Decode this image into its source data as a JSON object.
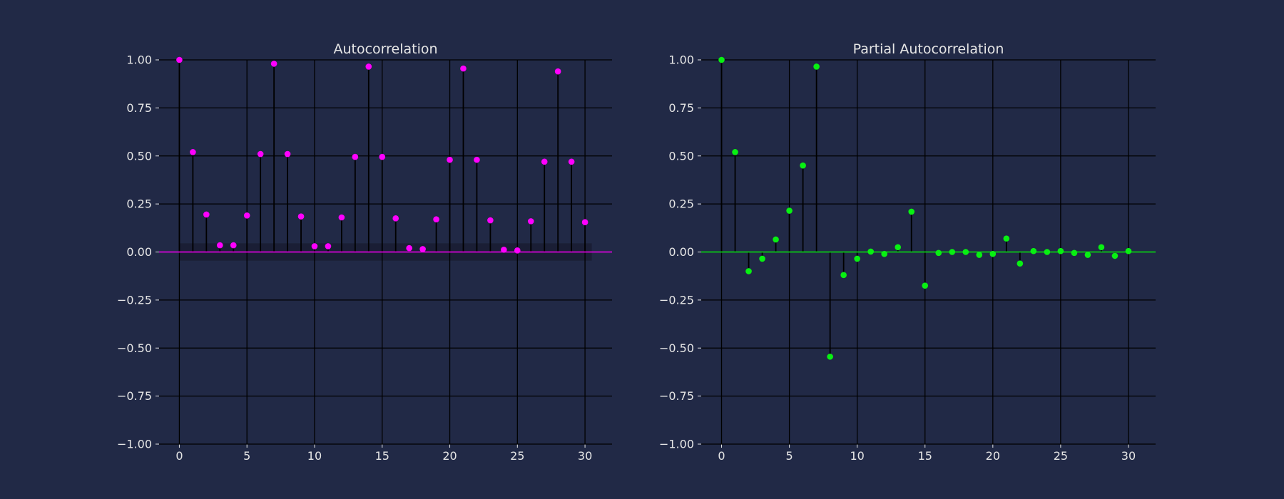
{
  "chart_data": [
    {
      "type": "stem",
      "title": "Autocorrelation",
      "xlabel": "",
      "ylabel": "",
      "xlim": [
        -1.5,
        32
      ],
      "ylim": [
        -1.0,
        1.0
      ],
      "grid": true,
      "color": "#ff00ff",
      "baseline_color": "#ff00ff",
      "confidence_band": {
        "lower": -0.045,
        "upper": 0.045,
        "color": "#1a1d33"
      },
      "x_ticks": [
        0,
        5,
        10,
        15,
        20,
        25,
        30
      ],
      "y_ticks": [
        1.0,
        0.75,
        0.5,
        0.25,
        0.0,
        -0.25,
        -0.5,
        -0.75,
        -1.0
      ],
      "x_tick_labels": [
        "0",
        "5",
        "10",
        "15",
        "20",
        "25",
        "30"
      ],
      "y_tick_labels": [
        "1.00",
        "0.75",
        "0.50",
        "0.25",
        "0.00",
        "−0.25",
        "−0.50",
        "−0.75",
        "−1.00"
      ],
      "x": [
        0,
        1,
        2,
        3,
        4,
        5,
        6,
        7,
        8,
        9,
        10,
        11,
        12,
        13,
        14,
        15,
        16,
        17,
        18,
        19,
        20,
        21,
        22,
        23,
        24,
        25,
        26,
        27,
        28,
        29,
        30
      ],
      "values": [
        1.0,
        0.52,
        0.195,
        0.035,
        0.035,
        0.19,
        0.51,
        0.98,
        0.51,
        0.185,
        0.03,
        0.03,
        0.18,
        0.495,
        0.965,
        0.495,
        0.175,
        0.02,
        0.015,
        0.17,
        0.48,
        0.955,
        0.48,
        0.165,
        0.012,
        0.008,
        0.16,
        0.47,
        0.94,
        0.47,
        0.155
      ]
    },
    {
      "type": "stem",
      "title": "Partial Autocorrelation",
      "xlabel": "",
      "ylabel": "",
      "xlim": [
        -1.5,
        32
      ],
      "ylim": [
        -1.0,
        1.0
      ],
      "grid": true,
      "color": "#08f012",
      "baseline_color": "#08f012",
      "x_ticks": [
        0,
        5,
        10,
        15,
        20,
        25,
        30
      ],
      "y_ticks": [
        1.0,
        0.75,
        0.5,
        0.25,
        0.0,
        -0.25,
        -0.5,
        -0.75,
        -1.0
      ],
      "x_tick_labels": [
        "0",
        "5",
        "10",
        "15",
        "20",
        "25",
        "30"
      ],
      "y_tick_labels": [
        "1.00",
        "0.75",
        "0.50",
        "0.25",
        "0.00",
        "−0.25",
        "−0.50",
        "−0.75",
        "−1.00"
      ],
      "x": [
        0,
        1,
        2,
        3,
        4,
        5,
        6,
        7,
        8,
        9,
        10,
        11,
        12,
        13,
        14,
        15,
        16,
        17,
        18,
        19,
        20,
        21,
        22,
        23,
        24,
        25,
        26,
        27,
        28,
        29,
        30
      ],
      "values": [
        1.0,
        0.52,
        -0.1,
        -0.035,
        0.065,
        0.215,
        0.45,
        0.965,
        -0.545,
        -0.12,
        -0.035,
        0.002,
        -0.01,
        0.025,
        0.21,
        -0.175,
        -0.005,
        0.0,
        0.0,
        -0.015,
        -0.01,
        0.07,
        -0.06,
        0.005,
        0.0,
        0.005,
        -0.005,
        -0.015,
        0.025,
        -0.02,
        0.005
      ]
    }
  ]
}
